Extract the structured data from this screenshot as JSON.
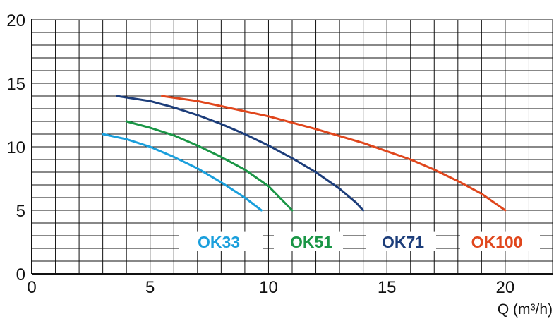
{
  "chart_data": {
    "type": "line",
    "title": "",
    "xlabel": "Q (m³/h)",
    "ylabel": "",
    "xlim": [
      0,
      22
    ],
    "ylim": [
      0,
      20
    ],
    "x_ticks": [
      0,
      5,
      10,
      15,
      20
    ],
    "y_ticks": [
      0,
      5,
      10,
      15,
      20
    ],
    "grid": true,
    "x_grid_step": 1,
    "y_grid_step": 1,
    "legend_placement": "bottom",
    "series": [
      {
        "name": "OK33",
        "color": "#1a9fdc",
        "points": [
          [
            3.0,
            11.0
          ],
          [
            4.0,
            10.6
          ],
          [
            5.0,
            10.0
          ],
          [
            6.0,
            9.2
          ],
          [
            7.0,
            8.3
          ],
          [
            8.0,
            7.2
          ],
          [
            9.0,
            6.0
          ],
          [
            9.7,
            5.0
          ]
        ]
      },
      {
        "name": "OK51",
        "color": "#1a9646",
        "points": [
          [
            4.0,
            12.0
          ],
          [
            5.0,
            11.5
          ],
          [
            6.0,
            10.9
          ],
          [
            7.0,
            10.1
          ],
          [
            8.0,
            9.2
          ],
          [
            9.0,
            8.2
          ],
          [
            10.0,
            6.9
          ],
          [
            11.0,
            5.0
          ]
        ]
      },
      {
        "name": "OK71",
        "color": "#1c3d7a",
        "points": [
          [
            3.6,
            14.0
          ],
          [
            5.0,
            13.6
          ],
          [
            6.0,
            13.1
          ],
          [
            7.0,
            12.5
          ],
          [
            8.0,
            11.8
          ],
          [
            9.0,
            11.0
          ],
          [
            10.0,
            10.1
          ],
          [
            11.0,
            9.1
          ],
          [
            12.0,
            8.0
          ],
          [
            13.0,
            6.7
          ],
          [
            13.7,
            5.6
          ],
          [
            14.0,
            5.0
          ]
        ]
      },
      {
        "name": "OK100",
        "color": "#e0461c",
        "points": [
          [
            5.5,
            14.0
          ],
          [
            7.0,
            13.6
          ],
          [
            8.0,
            13.2
          ],
          [
            10.0,
            12.4
          ],
          [
            12.0,
            11.4
          ],
          [
            14.0,
            10.3
          ],
          [
            16.0,
            9.0
          ],
          [
            17.0,
            8.2
          ],
          [
            18.0,
            7.3
          ],
          [
            19.0,
            6.3
          ],
          [
            20.0,
            5.0
          ]
        ]
      }
    ]
  }
}
